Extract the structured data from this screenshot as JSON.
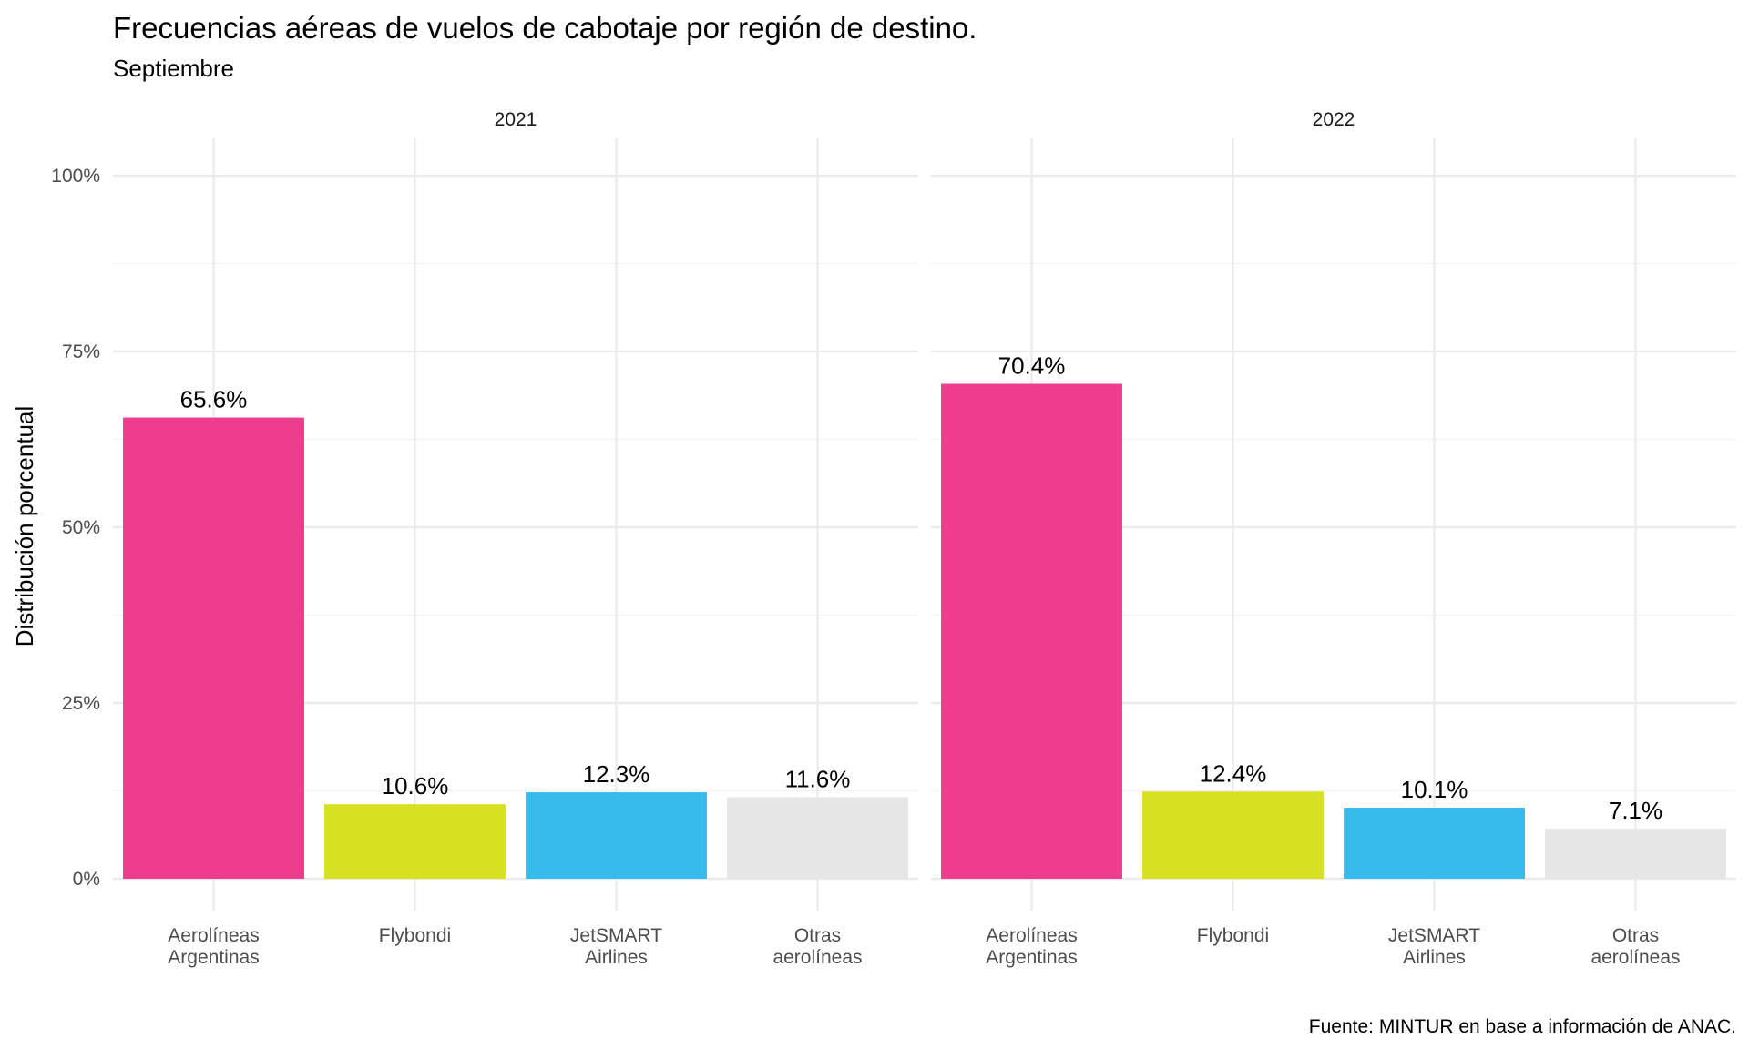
{
  "chart_data": {
    "type": "bar",
    "title": "Frecuencias aéreas de vuelos de cabotaje por región de destino.",
    "subtitle": "Septiembre",
    "ylabel": "Distribución porcentual",
    "xlabel": "",
    "caption": "Fuente: MINTUR en base a información de ANAC.",
    "ylim": [
      0,
      100
    ],
    "y_ticks": [
      "0%",
      "25%",
      "50%",
      "75%",
      "100%"
    ],
    "y_tick_values": [
      0,
      25,
      50,
      75,
      100
    ],
    "grid": true,
    "categories": [
      [
        "Aerolíneas",
        "Argentinas"
      ],
      [
        "Flybondi"
      ],
      [
        "JetSMART",
        "Airlines"
      ],
      [
        "Otras",
        "aerolíneas"
      ]
    ],
    "colors": [
      "#ee3d8f",
      "#d7e021",
      "#37bbed",
      "#e6e6e6"
    ],
    "panels": [
      {
        "label": "2021",
        "values": [
          65.6,
          10.6,
          12.3,
          11.6
        ],
        "value_labels": [
          "65.6%",
          "10.6%",
          "12.3%",
          "11.6%"
        ]
      },
      {
        "label": "2022",
        "values": [
          70.4,
          12.4,
          10.1,
          7.1
        ],
        "value_labels": [
          "70.4%",
          "12.4%",
          "10.1%",
          "7.1%"
        ]
      }
    ]
  }
}
